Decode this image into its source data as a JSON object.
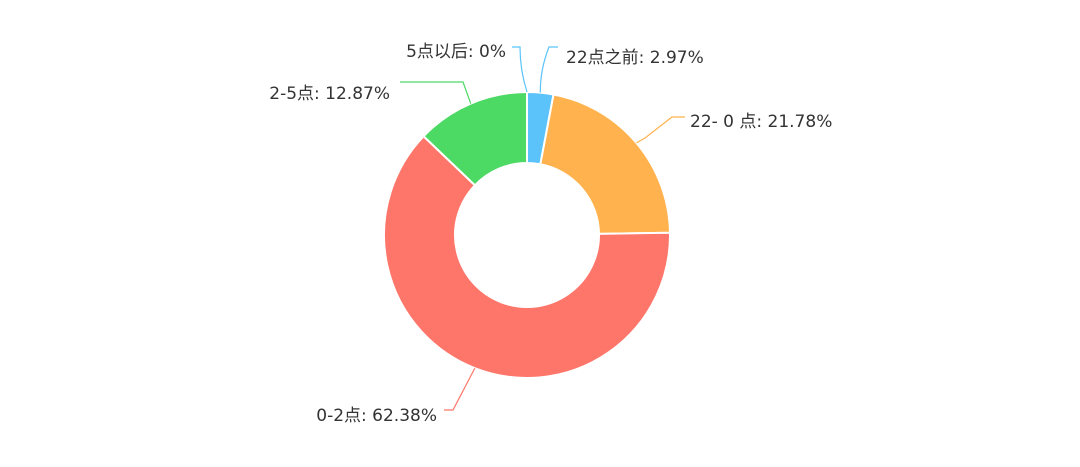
{
  "chart_data": {
    "type": "pie",
    "donut": true,
    "title": "",
    "grid": false,
    "legend": false,
    "slices": [
      {
        "label": "22点之前",
        "value": 2.97,
        "display": "22点之前: 2.97%",
        "color": "#5bc3f9"
      },
      {
        "label": "22-0点",
        "value": 21.78,
        "display": "22- 0 点: 21.78%",
        "color": "#ffb24d"
      },
      {
        "label": "0-2点",
        "value": 62.38,
        "display": "0-2点: 62.38%",
        "color": "#fe756a"
      },
      {
        "label": "2-5点",
        "value": 12.87,
        "display": "2-5点: 12.87%",
        "color": "#4cd964"
      },
      {
        "label": "5点以后",
        "value": 0,
        "display": "5点以后: 0%",
        "color": "#5bc3f9"
      }
    ]
  }
}
